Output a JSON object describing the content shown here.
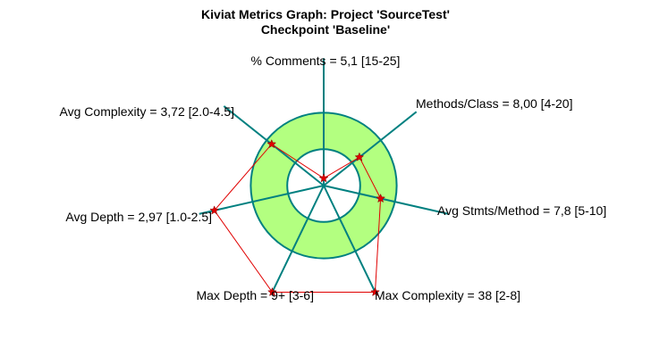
{
  "chart_data": {
    "type": "radar",
    "title": "Kiviat Metrics Graph: Project 'SourceTest'",
    "subtitle": "Checkpoint 'Baseline'",
    "normal_band": {
      "inner": 0.4,
      "outer": 0.8
    },
    "axes": [
      {
        "label": "% Comments = 5,1 [15-25]",
        "value": 5.1,
        "min": 15,
        "max": 25,
        "plot_value": 0.08,
        "anchor": "middle"
      },
      {
        "label": "Methods/Class = 8,00 [4-20]",
        "value": 8.0,
        "min": 4,
        "max": 20,
        "plot_value": 0.5,
        "anchor": "start"
      },
      {
        "label": "Avg Stmts/Method = 7,8 [5-10]",
        "value": 7.8,
        "min": 5,
        "max": 10,
        "plot_value": 0.64,
        "anchor": "start"
      },
      {
        "label": "Max Complexity = 38 [2-8]",
        "value": 38,
        "min": 2,
        "max": 8,
        "plot_value": 1.3,
        "anchor": "start"
      },
      {
        "label": "Max Depth = 9+ [3-6]",
        "value": 9,
        "min": 3,
        "max": 6,
        "plot_value": 1.3,
        "anchor": "end"
      },
      {
        "label": "Avg Depth = 2,97 [1.0-2.5]",
        "value": 2.97,
        "min": 1.0,
        "max": 2.5,
        "plot_value": 1.23,
        "anchor": "end"
      },
      {
        "label": "Avg Complexity = 3,72 [2.0-4.5]",
        "value": 3.72,
        "min": 2.0,
        "max": 4.5,
        "plot_value": 0.73,
        "anchor": "end"
      }
    ],
    "colors": {
      "band_fill": "#b3ff80",
      "band_stroke": "#008080",
      "axis": "#008080",
      "polygon": "#e00000",
      "marker": "#e00000"
    }
  }
}
